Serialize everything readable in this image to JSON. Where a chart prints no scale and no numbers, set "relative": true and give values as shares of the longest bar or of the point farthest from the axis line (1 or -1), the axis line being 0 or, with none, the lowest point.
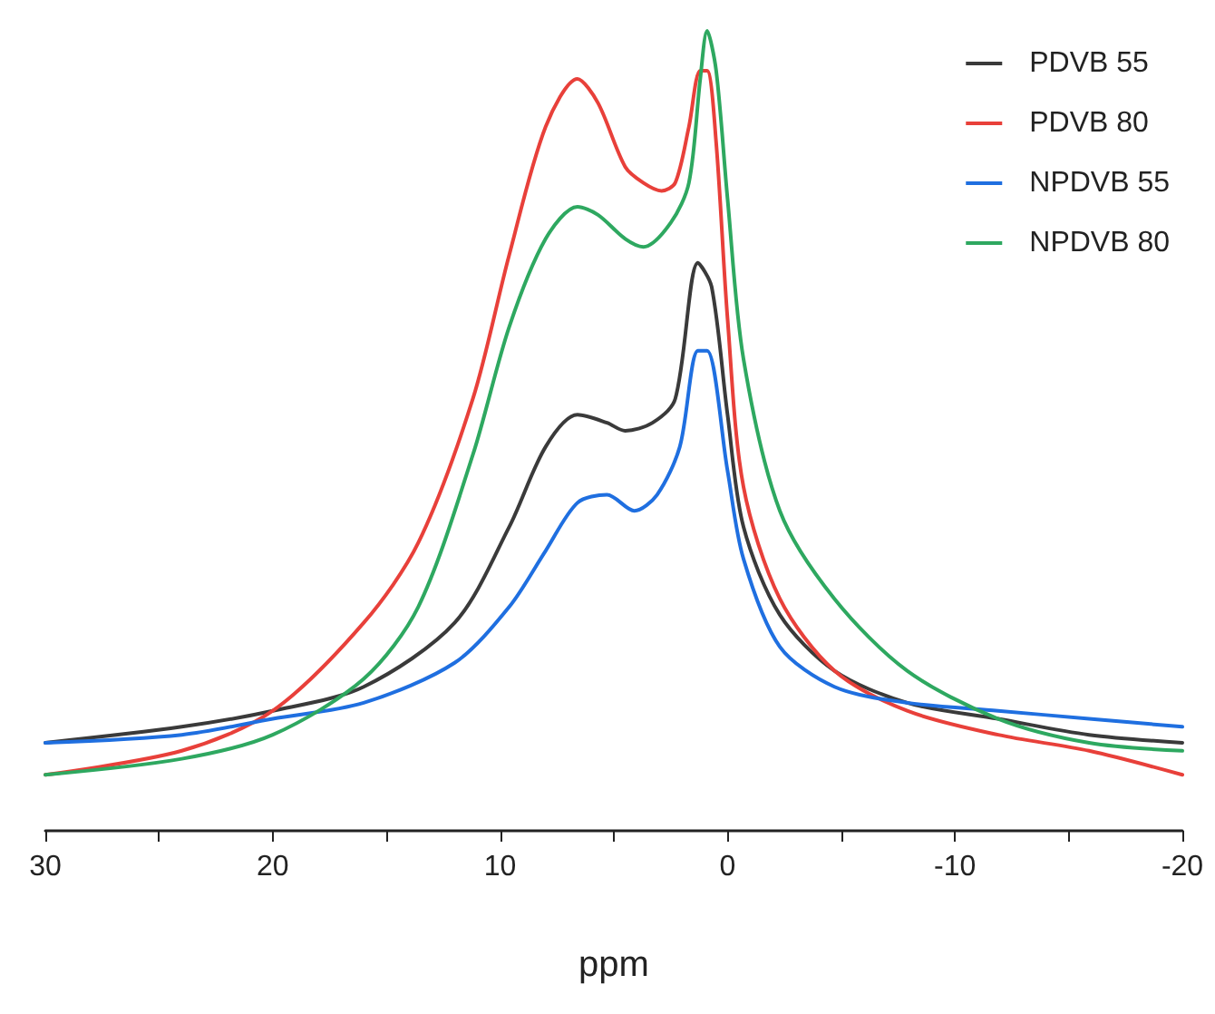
{
  "chart_data": {
    "type": "line",
    "xlabel": "ppm",
    "relative": true,
    "xlim": [
      30,
      -20
    ],
    "xticks": [
      30,
      {
        "value": 25,
        "label": null
      },
      20,
      {
        "value": 15,
        "label": null
      },
      10,
      {
        "value": 5,
        "label": null
      },
      0,
      {
        "value": -5,
        "label": null
      },
      -10,
      {
        "value": -15,
        "label": null
      },
      -20
    ],
    "grid": false,
    "legend": "top right",
    "marker": "none",
    "line_style": "solid",
    "series": [
      {
        "name": "PDVB 55",
        "color": "#3a3a3a",
        "x": [
          30,
          24,
          20,
          16,
          12,
          9.6,
          8,
          6.6,
          5.3,
          4.5,
          3.3,
          2.3,
          1.3,
          0.7,
          0,
          -0.7,
          -2.3,
          -4.7,
          -7.9,
          -11.9,
          -15.9,
          -20
        ],
        "values": [
          0.11,
          0.13,
          0.15,
          0.18,
          0.26,
          0.38,
          0.48,
          0.52,
          0.51,
          0.5,
          0.51,
          0.54,
          0.71,
          0.68,
          0.52,
          0.38,
          0.27,
          0.2,
          0.16,
          0.14,
          0.12,
          0.11
        ]
      },
      {
        "name": "PDVB 80",
        "color": "#e8403a",
        "x": [
          30,
          24,
          20,
          16,
          13.6,
          11.2,
          9.6,
          8,
          6.6,
          5.7,
          4.5,
          3.7,
          2.9,
          2.3,
          1.7,
          1.2,
          0.9,
          0.5,
          0,
          -0.7,
          -2.3,
          -4.7,
          -7.9,
          -11.9,
          -15.9,
          -20
        ],
        "values": [
          0.07,
          0.1,
          0.15,
          0.26,
          0.36,
          0.54,
          0.72,
          0.88,
          0.94,
          0.91,
          0.83,
          0.81,
          0.8,
          0.81,
          0.88,
          0.95,
          0.95,
          0.86,
          0.64,
          0.43,
          0.29,
          0.2,
          0.15,
          0.12,
          0.1,
          0.07
        ]
      },
      {
        "name": "NPDVB 55",
        "color": "#1f6fe0",
        "x": [
          30,
          24,
          20,
          16,
          12,
          9.6,
          8,
          6.6,
          5.3,
          4.1,
          3.1,
          2.1,
          1.3,
          0.9,
          0,
          -0.7,
          -2.3,
          -4.7,
          -7.9,
          -11.9,
          -15.9,
          -20
        ],
        "values": [
          0.11,
          0.12,
          0.14,
          0.16,
          0.21,
          0.28,
          0.35,
          0.41,
          0.42,
          0.4,
          0.42,
          0.48,
          0.6,
          0.6,
          0.45,
          0.34,
          0.23,
          0.18,
          0.16,
          0.15,
          0.14,
          0.13
        ]
      },
      {
        "name": "NPDVB 80",
        "color": "#2ea860",
        "x": [
          30,
          24,
          20,
          16,
          13.6,
          11.2,
          9.6,
          8,
          6.6,
          5.7,
          4.5,
          3.7,
          2.5,
          1.7,
          1.2,
          0.9,
          0.5,
          0,
          -0.7,
          -2.3,
          -4.7,
          -7.9,
          -11.9,
          -15.9,
          -20
        ],
        "values": [
          0.07,
          0.09,
          0.12,
          0.19,
          0.28,
          0.47,
          0.63,
          0.74,
          0.78,
          0.77,
          0.74,
          0.73,
          0.76,
          0.81,
          0.94,
          1,
          0.95,
          0.79,
          0.59,
          0.4,
          0.29,
          0.2,
          0.14,
          0.11,
          0.1
        ]
      }
    ]
  }
}
